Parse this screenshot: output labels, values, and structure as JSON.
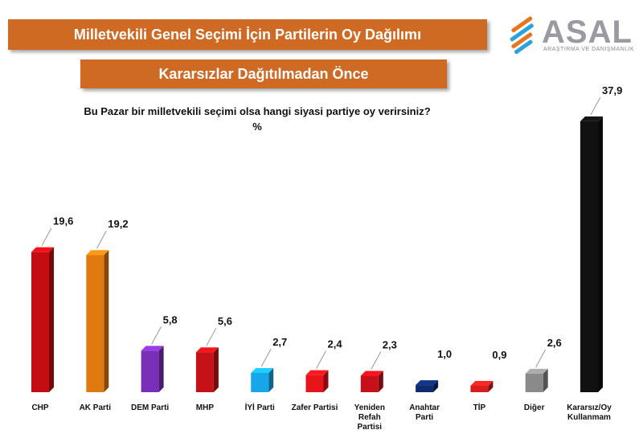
{
  "header": {
    "title": "Milletvekili Genel Seçimi İçin Partilerin Oy Dağılımı",
    "subtitle": "Kararsızlar Dağıtılmadan Önce",
    "question": "Bu Pazar bir milletvekili seçimi olsa hangi siyasi partiye oy verirsiniz?",
    "unit": "%"
  },
  "logo": {
    "name": "ASAL",
    "tagline": "ARAŞTIRMA VE DANIŞMANLIK"
  },
  "colors": {
    "banner": "#cf6a24",
    "CHP": "#c40d12",
    "AK Parti": "#e07a10",
    "DEM Parti": "#7a2fb8",
    "MHP": "#c41218",
    "İYİ Parti": "#17a6e8",
    "Zafer Partisi": "#e8141a",
    "Yeniden Refah Partisi": "#c8101a",
    "Anahtar Parti": "#0f2a6e",
    "TİP": "#d61e1e",
    "Diğer": "#8a8a8a",
    "Kararsız/Oy Kullanmam": "#111111"
  },
  "chart_data": {
    "type": "bar",
    "categories": [
      "CHP",
      "AK Parti",
      "DEM Parti",
      "MHP",
      "İYİ Parti",
      "Zafer Partisi",
      "Yeniden Refah Partisi",
      "Anahtar Parti",
      "TİP",
      "Diğer",
      "Kararsız/Oy Kullanmam"
    ],
    "category_lines": [
      [
        "CHP"
      ],
      [
        "AK Parti"
      ],
      [
        "DEM Parti"
      ],
      [
        "MHP"
      ],
      [
        "İYİ Parti"
      ],
      [
        "Zafer Partisi"
      ],
      [
        "Yeniden",
        "Refah",
        "Partisi"
      ],
      [
        "Anahtar",
        "Parti"
      ],
      [
        "TİP"
      ],
      [
        "Diğer"
      ],
      [
        "Kararsız/Oy",
        "Kullanmam"
      ]
    ],
    "values": [
      19.6,
      19.2,
      5.8,
      5.6,
      2.7,
      2.4,
      2.3,
      1.0,
      0.9,
      2.6,
      37.9
    ],
    "value_labels": [
      "19,6",
      "19,2",
      "5,8",
      "5,6",
      "2,7",
      "2,4",
      "2,3",
      "1,0",
      "0,9",
      "2,6",
      "37,9"
    ],
    "title": "Milletvekili Genel Seçimi İçin Partilerin Oy Dağılımı",
    "xlabel": "",
    "ylabel": "",
    "ylim": [
      0,
      38
    ],
    "grid": false,
    "legend": "none"
  }
}
